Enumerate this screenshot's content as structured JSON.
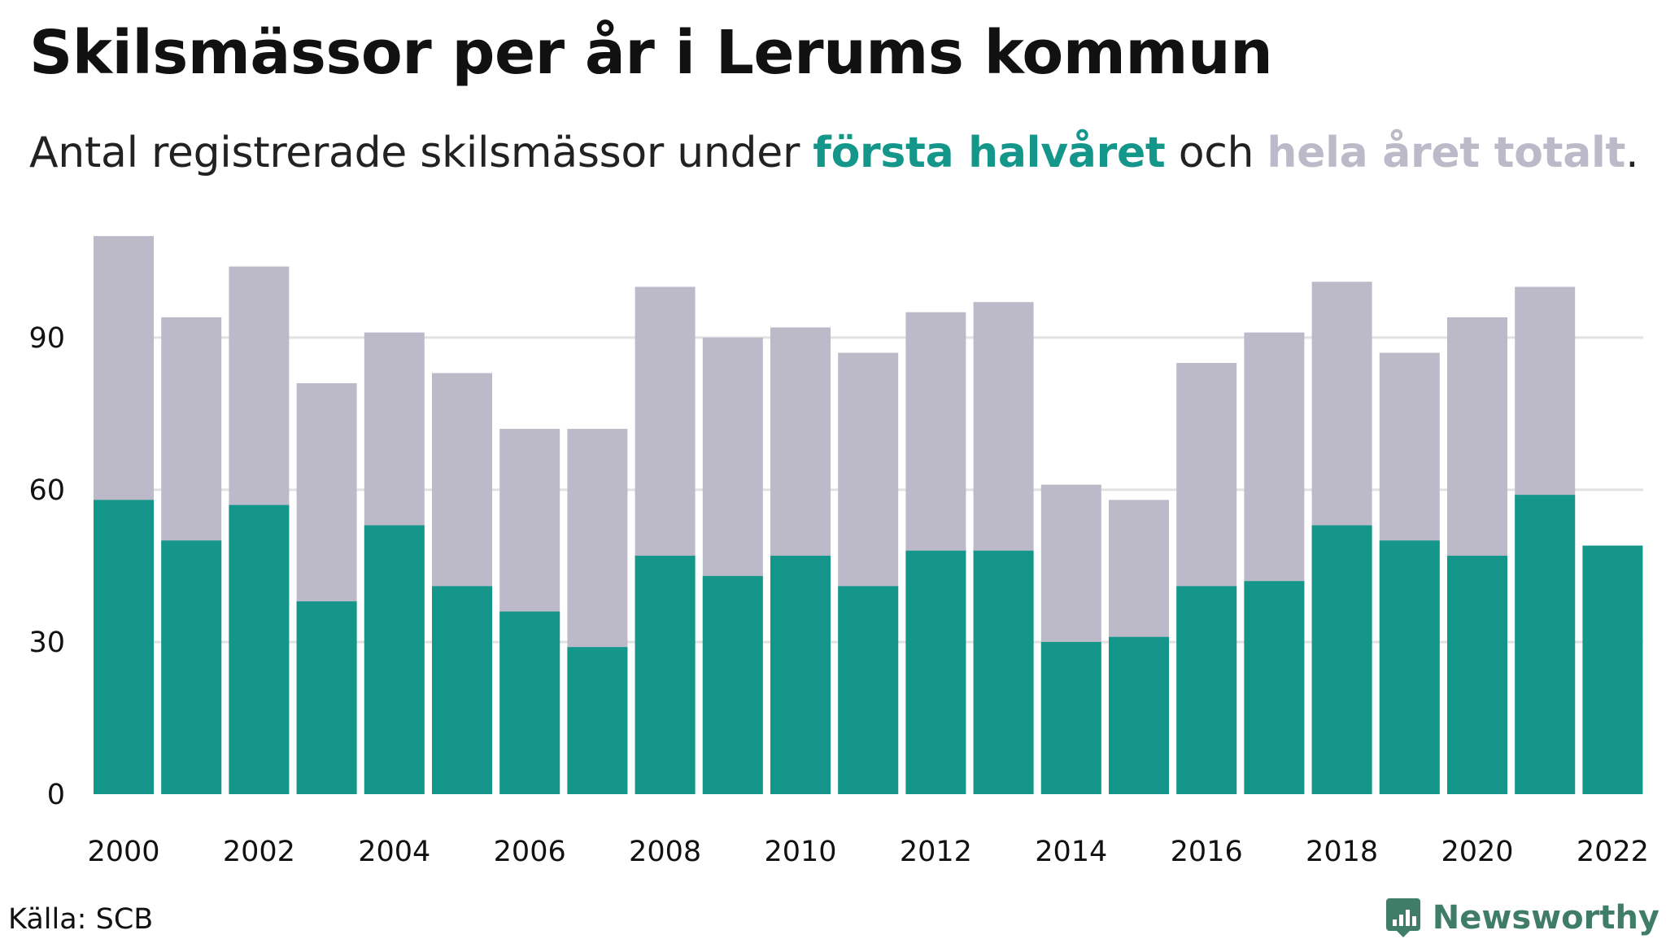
{
  "title": "Skilsmässor per år i Lerums kommun",
  "subtitle": {
    "prefix": "Antal registrerade skilsmässor under ",
    "series1": "första halvåret",
    "middle": " och ",
    "series2": "hela året totalt",
    "suffix": "."
  },
  "source": "Källa: SCB",
  "brand": "Newsworthy",
  "colors": {
    "first_half": "#14978a",
    "total": "#bcbac8",
    "grid": "#e2e2e2",
    "brand": "#3f7d69"
  },
  "icons": {
    "brand_logo": "newsworthy-logo-icon"
  },
  "chart_data": {
    "type": "bar",
    "stacking": "overlay",
    "x": [
      2000,
      2001,
      2002,
      2003,
      2004,
      2005,
      2006,
      2007,
      2008,
      2009,
      2010,
      2011,
      2012,
      2013,
      2014,
      2015,
      2016,
      2017,
      2018,
      2019,
      2020,
      2021,
      2022
    ],
    "series": [
      {
        "name": "hela året totalt",
        "color": "#bcbac8",
        "values": [
          110,
          94,
          104,
          81,
          91,
          83,
          72,
          72,
          100,
          90,
          92,
          87,
          95,
          97,
          61,
          58,
          85,
          91,
          101,
          87,
          94,
          100,
          null
        ]
      },
      {
        "name": "första halvåret",
        "color": "#14978a",
        "values": [
          58,
          50,
          57,
          38,
          53,
          41,
          36,
          29,
          47,
          43,
          47,
          41,
          48,
          48,
          30,
          31,
          41,
          42,
          53,
          50,
          47,
          59,
          49
        ]
      }
    ],
    "y_ticks": [
      0,
      30,
      60,
      90
    ],
    "x_ticks": [
      2000,
      2002,
      2004,
      2006,
      2008,
      2010,
      2012,
      2014,
      2016,
      2018,
      2020,
      2022
    ],
    "ylim": [
      0,
      110
    ],
    "grid": "horizontal"
  }
}
